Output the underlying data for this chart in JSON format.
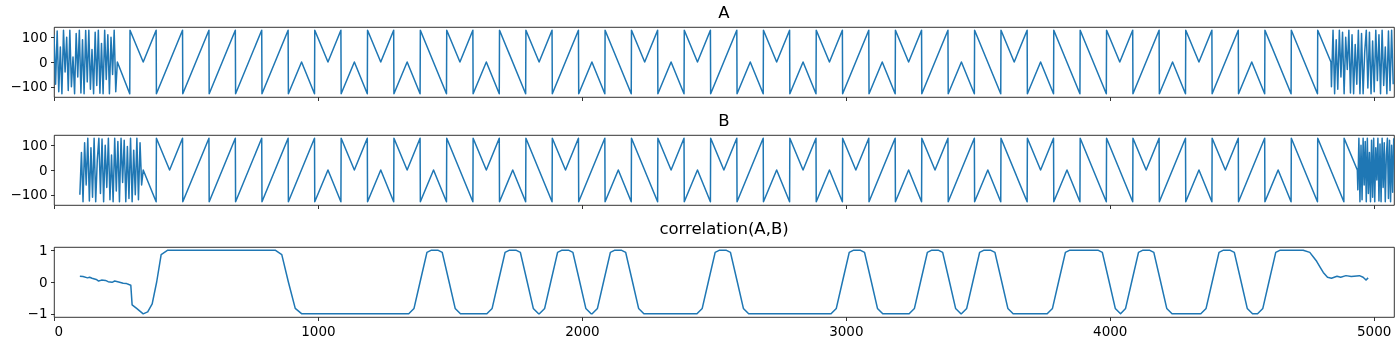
{
  "chart_data": [
    {
      "type": "line",
      "title": "A",
      "xlim": [
        0,
        5077
      ],
      "xticks": [
        0,
        1000,
        2000,
        3000,
        4000,
        5000
      ],
      "ylim": [
        -141,
        141
      ],
      "yticks": [
        -100,
        0,
        100
      ],
      "tick_labels": "y",
      "series": [
        {
          "color": "#1f77b4",
          "x": [
            0,
            6,
            12,
            18,
            24,
            30,
            36,
            42,
            48,
            54,
            60,
            66,
            72,
            78,
            84,
            90,
            96,
            102,
            108,
            114,
            120,
            126,
            132,
            138,
            144,
            150,
            156,
            162,
            168,
            174,
            180,
            186,
            192,
            198,
            204,
            210,
            216,
            222,
            228,
            234,
            240,
            287,
            288,
            338,
            387,
            388,
            487,
            488,
            587,
            588,
            687,
            688,
            787,
            788,
            887,
            888,
            938,
            987,
            988,
            1038,
            1087,
            1088,
            1138,
            1187,
            1188,
            1238,
            1287,
            1288,
            1338,
            1387,
            1388,
            1487,
            1488,
            1538,
            1587,
            1588,
            1638,
            1687,
            1688,
            1787,
            1788,
            1838,
            1887,
            1888,
            1987,
            1988,
            2038,
            2087,
            2088,
            2187,
            2188,
            2238,
            2287,
            2288,
            2338,
            2387,
            2388,
            2438,
            2487,
            2488,
            2587,
            2588,
            2638,
            2687,
            2688,
            2738,
            2787,
            2788,
            2838,
            2887,
            2888,
            2938,
            2987,
            2988,
            3087,
            3088,
            3138,
            3187,
            3188,
            3238,
            3287,
            3288,
            3387,
            3388,
            3438,
            3487,
            3488,
            3587,
            3588,
            3638,
            3687,
            3688,
            3738,
            3787,
            3788,
            3887,
            3888,
            3987,
            3988,
            4038,
            4087,
            4088,
            4187,
            4188,
            4238,
            4287,
            4288,
            4338,
            4387,
            4388,
            4487,
            4488,
            4538,
            4587,
            4588,
            4687,
            4688,
            4787,
            4788,
            4838,
            4840,
            4846,
            4852,
            4858,
            4864,
            4870,
            4876,
            4882,
            4888,
            4894,
            4900,
            4906,
            4912,
            4918,
            4924,
            4930,
            4936,
            4942,
            4948,
            4954,
            4960,
            4966,
            4972,
            4978,
            4984,
            4990,
            4996,
            5002,
            5008,
            5014,
            5020,
            5026,
            5032,
            5038,
            5044,
            5050,
            5056,
            5062,
            5068,
            5074
          ],
          "values": [
            110,
            -90,
            125,
            -120,
            60,
            -128,
            128,
            -40,
            100,
            -115,
            128,
            -100,
            20,
            -128,
            115,
            -60,
            128,
            -125,
            90,
            -128,
            127,
            -80,
            128,
            -110,
            50,
            -128,
            120,
            -95,
            128,
            -126,
            75,
            -128,
            128,
            -70,
            110,
            -128,
            100,
            -50,
            128,
            -120,
            0,
            -128,
            128,
            0,
            128,
            -128,
            128,
            -128,
            128,
            -128,
            128,
            -128,
            128,
            -128,
            128,
            -128,
            0,
            -128,
            128,
            0,
            128,
            -128,
            0,
            -128,
            128,
            0,
            128,
            -128,
            0,
            -128,
            128,
            -128,
            128,
            0,
            128,
            -128,
            0,
            -128,
            128,
            -128,
            128,
            0,
            128,
            -128,
            128,
            -128,
            0,
            -128,
            128,
            -128,
            128,
            0,
            128,
            -128,
            0,
            -128,
            128,
            0,
            128,
            -128,
            128,
            -128,
            0,
            -128,
            128,
            0,
            128,
            -128,
            0,
            -128,
            128,
            0,
            128,
            -128,
            128,
            -128,
            0,
            -128,
            128,
            0,
            128,
            -128,
            128,
            -128,
            0,
            -128,
            128,
            -128,
            128,
            0,
            128,
            -128,
            0,
            -128,
            128,
            -128,
            128,
            -128,
            128,
            0,
            128,
            -128,
            128,
            -128,
            0,
            -128,
            128,
            0,
            128,
            -128,
            128,
            -128,
            0,
            -128,
            128,
            -128,
            128,
            -128,
            128,
            0,
            -100,
            128,
            -128,
            90,
            -110,
            128,
            -60,
            120,
            -128,
            100,
            -30,
            128,
            -125,
            110,
            -128,
            70,
            -90,
            128,
            -128,
            115,
            -128,
            40,
            128,
            -105,
            120,
            -128,
            85,
            -120,
            128,
            -75,
            110,
            -128,
            128,
            -95,
            60,
            -128,
            125,
            -115,
            128,
            -90
          ]
        }
      ]
    },
    {
      "type": "line",
      "title": "B",
      "xlim": [
        0,
        5077
      ],
      "xticks": [
        0,
        1000,
        2000,
        3000,
        4000,
        5000
      ],
      "ylim": [
        -141,
        141
      ],
      "yticks": [
        -100,
        0,
        100
      ],
      "tick_labels": "y",
      "series": [
        {
          "color": "#1f77b4",
          "x": [
            98,
            104,
            110,
            116,
            122,
            128,
            134,
            140,
            146,
            152,
            158,
            164,
            170,
            176,
            182,
            188,
            194,
            200,
            206,
            212,
            218,
            224,
            230,
            236,
            242,
            248,
            254,
            260,
            266,
            272,
            278,
            284,
            290,
            296,
            302,
            308,
            314,
            320,
            326,
            332,
            338,
            387,
            388,
            438,
            487,
            488,
            587,
            588,
            687,
            688,
            787,
            788,
            887,
            888,
            987,
            988,
            1038,
            1087,
            1088,
            1138,
            1187,
            1188,
            1238,
            1287,
            1288,
            1338,
            1387,
            1388,
            1438,
            1487,
            1488,
            1587,
            1588,
            1638,
            1687,
            1688,
            1738,
            1787,
            1788,
            1887,
            1888,
            1938,
            1987,
            1988,
            2087,
            2088,
            2138,
            2187,
            2188,
            2287,
            2288,
            2338,
            2387,
            2388,
            2438,
            2487,
            2488,
            2538,
            2587,
            2588,
            2687,
            2688,
            2738,
            2787,
            2788,
            2838,
            2887,
            2888,
            2938,
            2987,
            2988,
            3038,
            3087,
            3088,
            3187,
            3188,
            3238,
            3287,
            3288,
            3338,
            3387,
            3388,
            3487,
            3488,
            3538,
            3587,
            3588,
            3687,
            3688,
            3738,
            3787,
            3788,
            3838,
            3887,
            3888,
            3987,
            3988,
            4087,
            4088,
            4138,
            4187,
            4188,
            4287,
            4288,
            4338,
            4387,
            4388,
            4438,
            4487,
            4488,
            4587,
            4588,
            4638,
            4687,
            4688,
            4787,
            4788,
            4887,
            4888,
            4938,
            4940,
            4944,
            4948,
            4952,
            4956,
            4960,
            4964,
            4968,
            4972,
            4976,
            4980,
            4984,
            4988,
            4992,
            4996,
            5000,
            5004,
            5008,
            5012,
            5016,
            5020,
            5024,
            5028,
            5032,
            5036,
            5040,
            5044,
            5048,
            5052,
            5056,
            5060,
            5064,
            5068,
            5072,
            5076
          ],
          "values": [
            -100,
            70,
            -128,
            110,
            -60,
            128,
            -125,
            90,
            -110,
            128,
            -128,
            40,
            128,
            -95,
            125,
            -128,
            100,
            -70,
            128,
            -120,
            60,
            -128,
            128,
            -85,
            115,
            -128,
            128,
            -50,
            120,
            -128,
            95,
            -115,
            128,
            -128,
            80,
            -100,
            128,
            -120,
            110,
            -60,
            0,
            -128,
            128,
            0,
            128,
            -128,
            128,
            -128,
            128,
            -128,
            128,
            -128,
            128,
            -128,
            128,
            -128,
            0,
            -128,
            128,
            0,
            128,
            -128,
            0,
            -128,
            128,
            0,
            128,
            -128,
            0,
            -128,
            128,
            -128,
            128,
            0,
            128,
            -128,
            0,
            -128,
            128,
            -128,
            128,
            0,
            128,
            -128,
            128,
            -128,
            0,
            -128,
            128,
            -128,
            128,
            0,
            128,
            -128,
            0,
            -128,
            128,
            0,
            128,
            -128,
            128,
            -128,
            0,
            -128,
            128,
            0,
            128,
            -128,
            0,
            -128,
            128,
            0,
            128,
            -128,
            128,
            -128,
            0,
            -128,
            128,
            0,
            128,
            -128,
            128,
            -128,
            0,
            -128,
            128,
            -128,
            128,
            0,
            128,
            -128,
            0,
            -128,
            128,
            -128,
            128,
            -128,
            128,
            0,
            128,
            -128,
            128,
            -128,
            0,
            -128,
            128,
            0,
            128,
            -128,
            128,
            -128,
            0,
            -128,
            128,
            -128,
            128,
            -128,
            128,
            0,
            -80,
            128,
            -128,
            100,
            -120,
            128,
            -60,
            115,
            -128,
            128,
            -95,
            70,
            -128,
            120,
            -110,
            128,
            -128,
            90,
            -40,
            128,
            -125,
            105,
            -128,
            128,
            -70,
            110,
            -128,
            60,
            128,
            -115,
            120,
            -128,
            100,
            -90,
            128
          ]
        }
      ]
    },
    {
      "type": "line",
      "title": "correlation(A,B)",
      "xlim": [
        0,
        5077
      ],
      "xticks": [
        0,
        1000,
        2000,
        3000,
        4000,
        5000
      ],
      "ylim": [
        -1.1,
        1.1
      ],
      "yticks": [
        -1,
        0,
        1
      ],
      "series": [
        {
          "color": "#1f77b4",
          "x": [
            98,
            110,
            127,
            135,
            144,
            160,
            169,
            180,
            195,
            205,
            220,
            230,
            245,
            262,
            275,
            284,
            291,
            296,
            313,
            338,
            355,
            372,
            389,
            406,
            431,
            838,
            863,
            888,
            914,
            939,
            1344,
            1364,
            1387,
            1413,
            1430,
            1454,
            1471,
            1497,
            1520,
            1540,
            1640,
            1660,
            1683,
            1709,
            1726,
            1750,
            1767,
            1793,
            1816,
            1836,
            1839,
            1859,
            1882,
            1908,
            1925,
            1949,
            1966,
            1992,
            2015,
            2035,
            2039,
            2059,
            2082,
            2108,
            2125,
            2149,
            2166,
            2192,
            2215,
            2235,
            2436,
            2456,
            2479,
            2505,
            2522,
            2546,
            2563,
            2589,
            2612,
            2632,
            2944,
            2964,
            2987,
            3013,
            3030,
            3054,
            3071,
            3097,
            3120,
            3140,
            3240,
            3260,
            3283,
            3309,
            3326,
            3350,
            3367,
            3393,
            3416,
            3436,
            3438,
            3458,
            3481,
            3507,
            3524,
            3548,
            3565,
            3591,
            3614,
            3634,
            3763,
            3783,
            3806,
            3832,
            3849,
            3955,
            3972,
            3998,
            4021,
            4041,
            4060,
            4083,
            4109,
            4126,
            4150,
            4167,
            4193,
            4216,
            4236,
            4345,
            4365,
            4388,
            4414,
            4431,
            4455,
            4472,
            4498,
            4521,
            4541,
            4560,
            4580,
            4603,
            4629,
            4646,
            4733,
            4758,
            4784,
            4798,
            4809,
            4825,
            4840,
            4861,
            4875,
            4895,
            4915,
            4946,
            4960,
            4971,
            4979
          ],
          "values": [
            0.18,
            0.17,
            0.13,
            0.15,
            0.12,
            0.08,
            0.03,
            0.06,
            0.05,
            0.01,
            -0.01,
            0.03,
            0,
            -0.04,
            -0.05,
            -0.08,
            -0.1,
            -0.72,
            -0.83,
            -1,
            -0.94,
            -0.69,
            0,
            0.86,
            1,
            1,
            0.86,
            0,
            -0.83,
            -1,
            -1,
            -0.83,
            0,
            0.93,
            1,
            1,
            0.93,
            0,
            -0.83,
            -1,
            -1,
            -0.83,
            0,
            0.93,
            1,
            1,
            0.93,
            0,
            -0.83,
            -1,
            -1,
            -0.83,
            0,
            0.93,
            1,
            1,
            0.93,
            0,
            -0.83,
            -1,
            -1,
            -0.83,
            0,
            0.93,
            1,
            1,
            0.93,
            0,
            -0.83,
            -1,
            -1,
            -0.83,
            0,
            0.93,
            1,
            1,
            0.93,
            0,
            -0.83,
            -1,
            -1,
            -0.83,
            0,
            0.93,
            1,
            1,
            0.93,
            0,
            -0.83,
            -1,
            -1,
            -0.83,
            0,
            0.93,
            1,
            1,
            0.93,
            0,
            -0.83,
            -1,
            -1,
            -0.83,
            0,
            0.93,
            1,
            1,
            0.93,
            0,
            -0.83,
            -1,
            -1,
            -0.83,
            0,
            0.93,
            1,
            1,
            0.93,
            0,
            -0.83,
            -1,
            -0.83,
            0,
            0.93,
            1,
            1,
            0.93,
            0,
            -0.83,
            -1,
            -1,
            -0.83,
            0,
            0.93,
            1,
            1,
            0.93,
            0,
            -0.83,
            -1,
            -1,
            -0.83,
            0,
            0.93,
            1,
            1,
            0.93,
            0.65,
            0.45,
            0.3,
            0.15,
            0.12,
            0.18,
            0.15,
            0.2,
            0.17,
            0.2,
            0.15,
            0.06,
            0.13
          ]
        }
      ]
    }
  ]
}
